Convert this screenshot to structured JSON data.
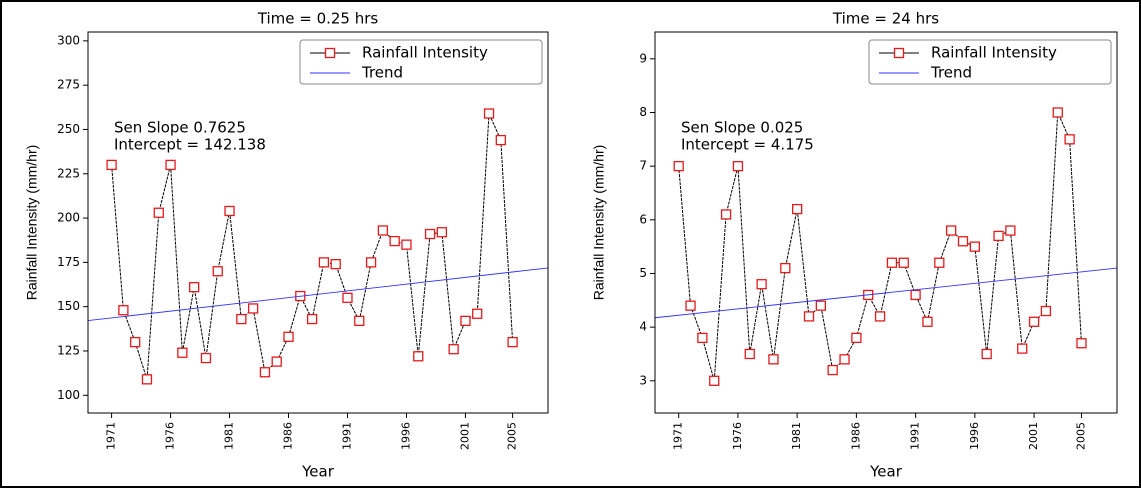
{
  "chart_data": [
    {
      "type": "line",
      "title": "Time = 0.25 hrs",
      "xlabel": "Year",
      "ylabel": "Rainfall Intensity (mm/hr)",
      "annotations": [
        "Sen Slope 0.7625",
        "Intercept = 142.138"
      ],
      "x": [
        1971,
        1972,
        1973,
        1974,
        1975,
        1976,
        1977,
        1978,
        1979,
        1980,
        1981,
        1982,
        1983,
        1984,
        1985,
        1986,
        1987,
        1988,
        1989,
        1990,
        1991,
        1992,
        1993,
        1994,
        1995,
        1996,
        1997,
        1998,
        1999,
        2000,
        2001,
        2002,
        2003,
        2004,
        2005
      ],
      "series": [
        {
          "name": "Rainfall Intensity",
          "color": "#000000",
          "marker_color": "#e41a1c",
          "values": [
            230,
            148,
            130,
            109,
            203,
            230,
            124,
            161,
            121,
            170,
            204,
            143,
            149,
            113,
            119,
            133,
            156,
            143,
            175,
            174,
            155,
            142,
            175,
            193,
            187,
            185,
            122,
            191,
            192,
            126,
            142,
            146,
            259,
            244,
            130
          ]
        },
        {
          "name": "Trend",
          "color": "#3333ff",
          "x": [
            1969,
            2008
          ],
          "values": [
            142.138,
            171.87
          ]
        }
      ],
      "xlim": [
        1969,
        2008
      ],
      "xticks": [
        1971,
        1976,
        1981,
        1986,
        1991,
        1996,
        2001,
        2005
      ],
      "ylim": [
        90,
        305
      ],
      "yticks": [
        100,
        125,
        150,
        175,
        200,
        225,
        250,
        275,
        300
      ],
      "legend": "upper right"
    },
    {
      "type": "line",
      "title": "Time = 24 hrs",
      "xlabel": "Year",
      "ylabel": "Rainfall Intensity (mm/hr)",
      "annotations": [
        "Sen Slope 0.025",
        "Intercept = 4.175"
      ],
      "x": [
        1971,
        1972,
        1973,
        1974,
        1975,
        1976,
        1977,
        1978,
        1979,
        1980,
        1981,
        1982,
        1983,
        1984,
        1985,
        1986,
        1987,
        1988,
        1989,
        1990,
        1991,
        1992,
        1993,
        1994,
        1995,
        1996,
        1997,
        1998,
        1999,
        2000,
        2001,
        2002,
        2003,
        2004,
        2005
      ],
      "series": [
        {
          "name": "Rainfall Intensity",
          "color": "#000000",
          "marker_color": "#e41a1c",
          "values": [
            7,
            4.4,
            3.8,
            3.0,
            6.1,
            7.0,
            3.5,
            4.8,
            3.4,
            5.1,
            6.2,
            4.2,
            4.4,
            3.2,
            3.4,
            3.8,
            4.6,
            4.2,
            5.2,
            5.2,
            4.6,
            4.1,
            5.2,
            5.8,
            5.6,
            5.5,
            3.5,
            5.7,
            5.8,
            3.6,
            4.1,
            4.3,
            8.0,
            7.5,
            3.7
          ]
        },
        {
          "name": "Trend",
          "color": "#3333ff",
          "x": [
            1969,
            2008
          ],
          "values": [
            4.175,
            5.1
          ]
        }
      ],
      "xlim": [
        1969,
        2008
      ],
      "xticks": [
        1971,
        1976,
        1981,
        1986,
        1991,
        1996,
        2001,
        2005
      ],
      "ylim": [
        2.4,
        9.5
      ],
      "yticks": [
        3,
        4,
        5,
        6,
        7,
        8,
        9
      ],
      "legend": "upper right"
    }
  ]
}
